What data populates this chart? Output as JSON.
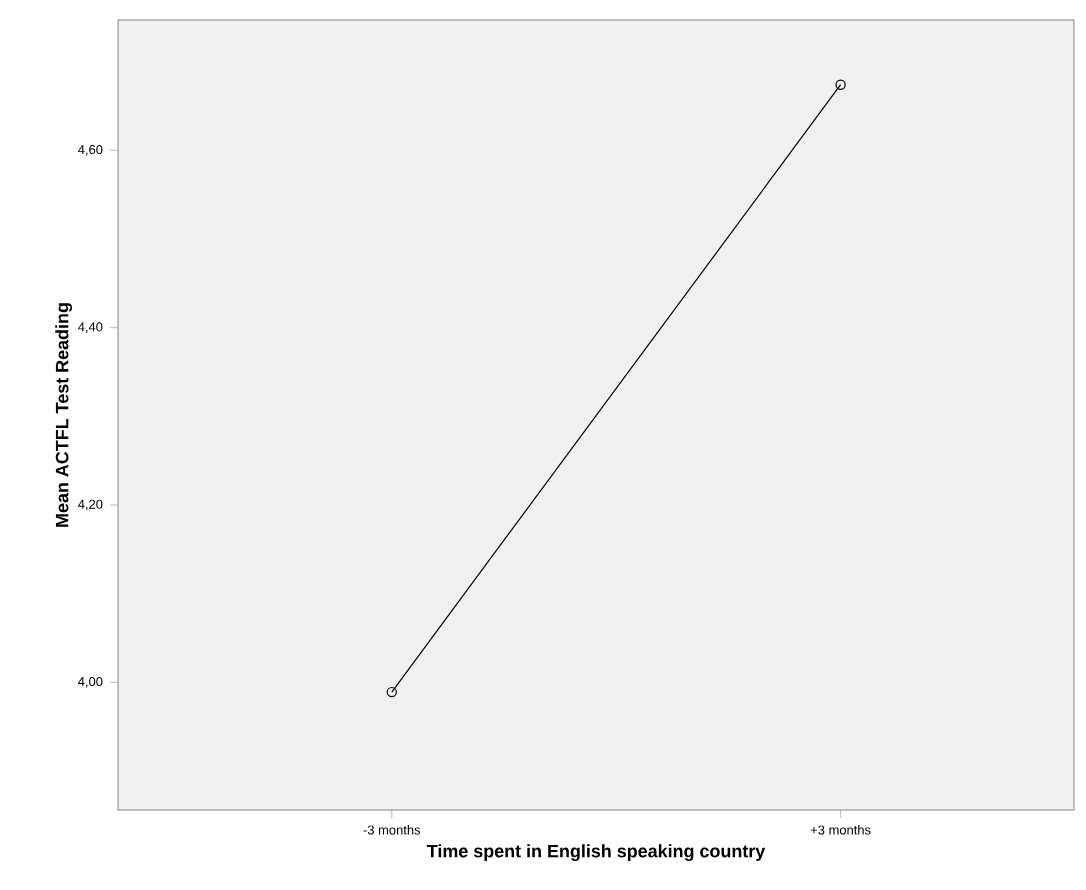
{
  "chart_data": {
    "type": "line",
    "xlabel": "Time spent in English speaking country",
    "ylabel": "Mean ACTFL Test Reading",
    "categories": [
      "-3 months",
      "+3 months"
    ],
    "series": [
      {
        "color": "#000000",
        "values": [
          3.989,
          4.674
        ]
      }
    ],
    "ylim": [
      3.856,
      4.747
    ],
    "yticks": [
      {
        "value": 4.0,
        "label": "4,00"
      },
      {
        "value": 4.2,
        "label": "4,20"
      },
      {
        "value": 4.4,
        "label": "4,40"
      },
      {
        "value": 4.6,
        "label": "4,60"
      }
    ],
    "marker": "circle",
    "line_style": "solid"
  }
}
